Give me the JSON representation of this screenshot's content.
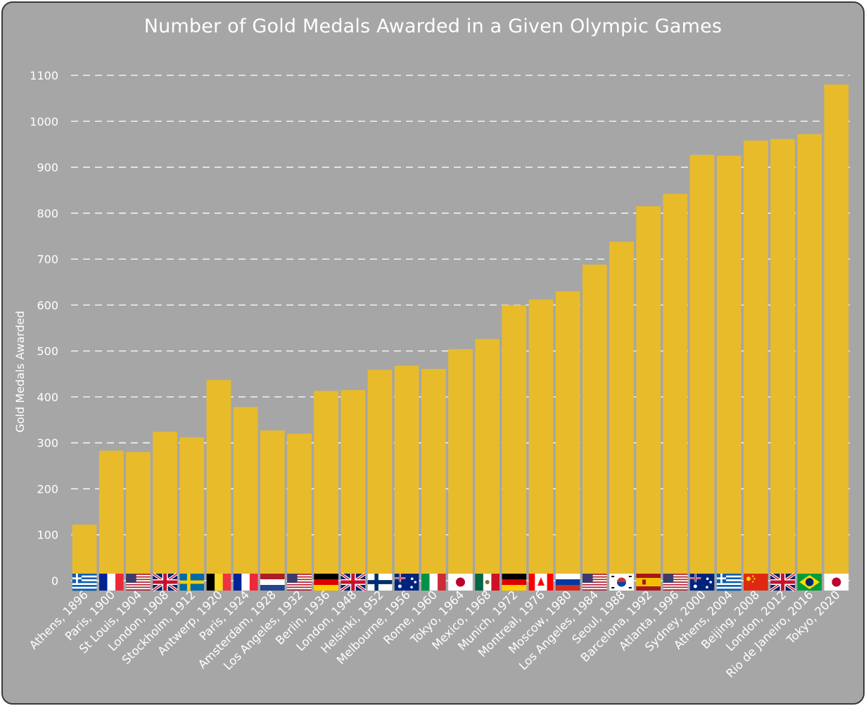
{
  "chart_data": {
    "type": "bar",
    "title": "Number of Gold Medals Awarded in a Given Olympic Games",
    "xlabel": "",
    "ylabel": "Gold Medals Awarded",
    "ylim": [
      0,
      1100
    ],
    "yticks": [
      0,
      100,
      200,
      300,
      400,
      500,
      600,
      700,
      800,
      900,
      1000,
      1100
    ],
    "grid": "horizontal-dashed",
    "bar_color": "#e8bb2b",
    "background_color": "#a6a6a6",
    "categories": [
      "Athens, 1896",
      "Paris, 1900",
      "St Louis, 1904",
      "London, 1908",
      "Stockholm, 1912",
      "Antwerp, 1920",
      "Paris, 1924",
      "Amsterdam, 1928",
      "Los Angeles, 1932",
      "Berlin, 1936",
      "London, 1948",
      "Helsinki, 1952",
      "Melbourne, 1956",
      "Rome, 1960",
      "Tokyo, 1964",
      "Mexico, 1968",
      "Munich, 1972",
      "Montreal, 1976",
      "Moscow, 1980",
      "Los Angeles, 1984",
      "Seoul, 1988",
      "Barcelona, 1992",
      "Atlanta, 1996",
      "Sydney, 2000",
      "Athens, 2004",
      "Beijing, 2008",
      "London, 2012",
      "Rio de Janeiro, 2016",
      "Tokyo, 2020"
    ],
    "values": [
      122,
      283,
      280,
      324,
      312,
      437,
      378,
      327,
      320,
      413,
      415,
      459,
      468,
      461,
      504,
      526,
      600,
      612,
      630,
      688,
      738,
      815,
      842,
      927,
      925,
      958,
      961,
      972,
      1080
    ],
    "flags": [
      "greece-flag-icon",
      "france-flag-icon",
      "usa-flag-icon",
      "uk-flag-icon",
      "sweden-flag-icon",
      "belgium-flag-icon",
      "france-flag-icon",
      "netherlands-flag-icon",
      "usa-flag-icon",
      "germany-flag-icon",
      "uk-flag-icon",
      "finland-flag-icon",
      "australia-flag-icon",
      "italy-flag-icon",
      "japan-flag-icon",
      "mexico-flag-icon",
      "germany-flag-icon",
      "canada-flag-icon",
      "russia-flag-icon",
      "usa-flag-icon",
      "south-korea-flag-icon",
      "spain-flag-icon",
      "usa-flag-icon",
      "australia-flag-icon",
      "greece-flag-icon",
      "china-flag-icon",
      "uk-flag-icon",
      "brazil-flag-icon",
      "japan-flag-icon"
    ]
  }
}
